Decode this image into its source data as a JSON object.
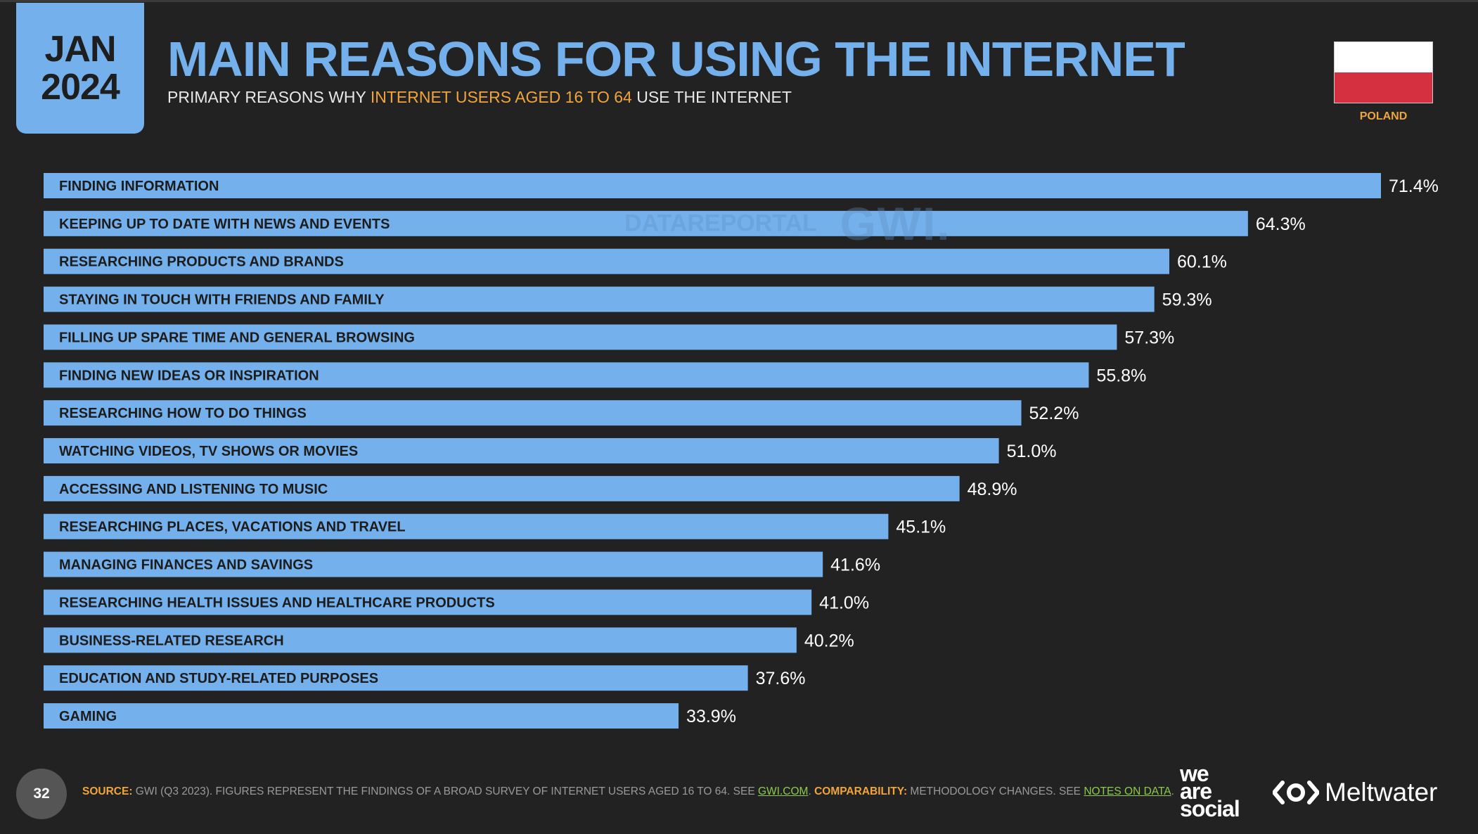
{
  "header": {
    "date_month": "JAN",
    "date_year": "2024",
    "title": "MAIN REASONS FOR USING THE INTERNET",
    "subtitle_prefix": "PRIMARY REASONS WHY",
    "subtitle_highlight": "INTERNET USERS AGED 16 TO 64",
    "subtitle_suffix": "USE THE INTERNET",
    "country": "POLAND"
  },
  "watermark": {
    "left": "DATAREPORTAL",
    "right": "GWI."
  },
  "colors": {
    "background": "#222222",
    "bar": "#74b0ec",
    "accent": "#f0a43c",
    "link": "#8ccb4a"
  },
  "chart_data": {
    "type": "bar",
    "orientation": "horizontal",
    "categories": [
      "FINDING INFORMATION",
      "KEEPING UP TO DATE WITH NEWS AND EVENTS",
      "RESEARCHING PRODUCTS AND BRANDS",
      "STAYING IN TOUCH WITH FRIENDS AND FAMILY",
      "FILLING UP SPARE TIME AND GENERAL BROWSING",
      "FINDING NEW IDEAS OR INSPIRATION",
      "RESEARCHING HOW TO DO THINGS",
      "WATCHING VIDEOS, TV SHOWS OR MOVIES",
      "ACCESSING AND LISTENING TO MUSIC",
      "RESEARCHING PLACES, VACATIONS AND TRAVEL",
      "MANAGING FINANCES AND SAVINGS",
      "RESEARCHING HEALTH ISSUES AND HEALTHCARE PRODUCTS",
      "BUSINESS-RELATED RESEARCH",
      "EDUCATION AND STUDY-RELATED PURPOSES",
      "GAMING"
    ],
    "values": [
      71.4,
      64.3,
      60.1,
      59.3,
      57.3,
      55.8,
      52.2,
      51.0,
      48.9,
      45.1,
      41.6,
      41.0,
      40.2,
      37.6,
      33.9
    ],
    "value_labels": [
      "71.4%",
      "64.3%",
      "60.1%",
      "59.3%",
      "57.3%",
      "55.8%",
      "52.2%",
      "51.0%",
      "48.9%",
      "45.1%",
      "41.6%",
      "41.0%",
      "40.2%",
      "37.6%",
      "33.9%"
    ],
    "unit": "%"
  },
  "footer": {
    "page_number": "32",
    "source_label": "SOURCE:",
    "source_text": "GWI (Q3 2023). FIGURES REPRESENT THE FINDINGS OF A BROAD SURVEY OF INTERNET USERS AGED 16 TO 64. SEE",
    "source_link": "GWI.COM",
    "comparability_label": "COMPARABILITY:",
    "comparability_text": "METHODOLOGY CHANGES. SEE",
    "comparability_link": "NOTES ON DATA",
    "logo_was_line1": "we",
    "logo_was_line2": "are",
    "logo_was_line3": "social",
    "logo_meltwater": "Meltwater"
  }
}
